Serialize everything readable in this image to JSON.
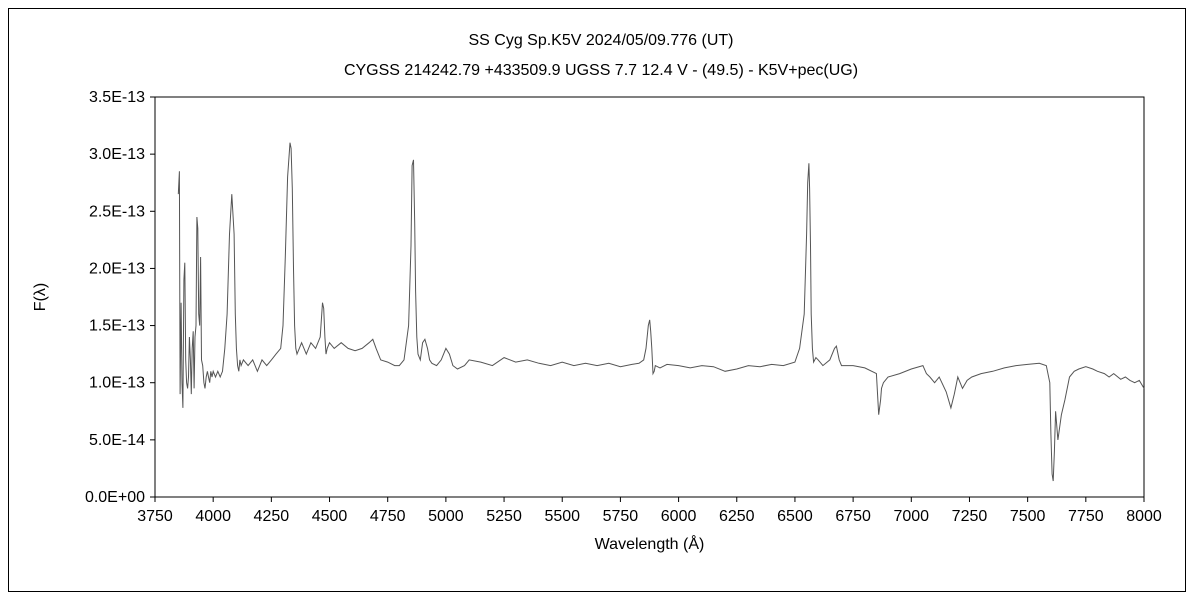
{
  "chart_data": {
    "type": "line",
    "title": "SS Cyg    Sp.K5V    2024/05/09.776 (UT)",
    "subtitle": "CYGSS 214242.79 +433509.9 UGSS 7.7 12.4 V - (49.5) - K5V+pec(UG)",
    "xlabel": "Wavelength (Å)",
    "ylabel": "F(λ)",
    "xlim": [
      3750,
      8000
    ],
    "ylim": [
      0,
      3.5e-13
    ],
    "x_ticks": [
      3750,
      4000,
      4250,
      4500,
      4750,
      5000,
      5250,
      5500,
      5750,
      6000,
      6250,
      6500,
      6750,
      7000,
      7250,
      7500,
      7750,
      8000
    ],
    "x_tick_labels": [
      "3750",
      "4000",
      "4250",
      "4500",
      "4750",
      "5000",
      "5250",
      "5500",
      "5750",
      "6000",
      "6250",
      "6500",
      "6750",
      "7000",
      "7250",
      "7500",
      "7750",
      "8000"
    ],
    "y_ticks": [
      0,
      5e-14,
      1e-13,
      1.5e-13,
      2e-13,
      2.5e-13,
      3e-13,
      3.5e-13
    ],
    "y_tick_labels": [
      "0.0E+00",
      "5.0E-14",
      "1.0E-13",
      "1.5E-13",
      "2.0E-13",
      "2.5E-13",
      "3.0E-13",
      "3.5E-13"
    ],
    "grid": false,
    "line_color": "#555555",
    "series": [
      {
        "x": [
          3850,
          3855,
          3858,
          3862,
          3866,
          3870,
          3874,
          3878,
          3882,
          3886,
          3890,
          3894,
          3898,
          3902,
          3906,
          3910,
          3914,
          3918,
          3922,
          3926,
          3930,
          3934,
          3938,
          3942,
          3946,
          3950,
          3955,
          3960,
          3965,
          3970,
          3975,
          3980,
          3985,
          3990,
          3995,
          4000,
          4010,
          4020,
          4030,
          4040,
          4050,
          4060,
          4070,
          4080,
          4090,
          4095,
          4100,
          4105,
          4110,
          4115,
          4120,
          4130,
          4150,
          4170,
          4190,
          4210,
          4230,
          4250,
          4270,
          4290,
          4300,
          4310,
          4320,
          4330,
          4335,
          4340,
          4345,
          4350,
          4355,
          4360,
          4370,
          4380,
          4400,
          4420,
          4440,
          4460,
          4470,
          4475,
          4480,
          4485,
          4490,
          4500,
          4520,
          4550,
          4580,
          4610,
          4640,
          4670,
          4686,
          4700,
          4720,
          4750,
          4780,
          4800,
          4820,
          4840,
          4850,
          4855,
          4861,
          4866,
          4870,
          4875,
          4880,
          4890,
          4900,
          4910,
          4921,
          4930,
          4940,
          4960,
          4980,
          5000,
          5015,
          5030,
          5050,
          5080,
          5100,
          5150,
          5200,
          5250,
          5300,
          5350,
          5400,
          5450,
          5500,
          5550,
          5600,
          5650,
          5700,
          5750,
          5800,
          5830,
          5850,
          5860,
          5870,
          5876,
          5880,
          5885,
          5890,
          5895,
          5900,
          5920,
          5950,
          6000,
          6050,
          6100,
          6150,
          6200,
          6250,
          6300,
          6350,
          6400,
          6450,
          6500,
          6520,
          6540,
          6550,
          6555,
          6560,
          6563,
          6567,
          6570,
          6575,
          6580,
          6590,
          6600,
          6620,
          6650,
          6670,
          6678,
          6690,
          6700,
          6750,
          6800,
          6850,
          6860,
          6868,
          6872,
          6880,
          6900,
          6950,
          7000,
          7050,
          7065,
          7080,
          7100,
          7120,
          7150,
          7170,
          7185,
          7200,
          7220,
          7240,
          7260,
          7300,
          7350,
          7400,
          7450,
          7500,
          7550,
          7580,
          7595,
          7600,
          7605,
          7610,
          7615,
          7620,
          7630,
          7645,
          7660,
          7680,
          7700,
          7720,
          7750,
          7780,
          7800,
          7830,
          7850,
          7870,
          7900,
          7920,
          7940,
          7960,
          7980,
          8000
        ],
        "y": [
          2.65e-13,
          2.85e-13,
          9e-14,
          1.7e-13,
          1e-13,
          7.8e-14,
          1.9e-13,
          2.05e-13,
          1.2e-13,
          1e-13,
          9.5e-14,
          1.05e-13,
          1.4e-13,
          1.2e-13,
          9e-14,
          1.3e-13,
          1.45e-13,
          9.5e-14,
          1.4e-13,
          1.5e-13,
          2.45e-13,
          2.35e-13,
          1.6e-13,
          1.5e-13,
          2.1e-13,
          1.2e-13,
          1.15e-13,
          1e-13,
          9.5e-14,
          1.05e-13,
          1.1e-13,
          1.05e-13,
          1e-13,
          1.1e-13,
          1.05e-13,
          1.1e-13,
          1.05e-13,
          1.1e-13,
          1.05e-13,
          1.1e-13,
          1.3e-13,
          1.6e-13,
          2.3e-13,
          2.65e-13,
          2.3e-13,
          1.6e-13,
          1.3e-13,
          1.15e-13,
          1.1e-13,
          1.2e-13,
          1.15e-13,
          1.2e-13,
          1.15e-13,
          1.2e-13,
          1.1e-13,
          1.2e-13,
          1.15e-13,
          1.2e-13,
          1.25e-13,
          1.3e-13,
          1.5e-13,
          2.1e-13,
          2.8e-13,
          3.1e-13,
          3.05e-13,
          2.7e-13,
          2e-13,
          1.5e-13,
          1.3e-13,
          1.25e-13,
          1.3e-13,
          1.35e-13,
          1.25e-13,
          1.35e-13,
          1.3e-13,
          1.4e-13,
          1.7e-13,
          1.65e-13,
          1.4e-13,
          1.25e-13,
          1.3e-13,
          1.35e-13,
          1.3e-13,
          1.35e-13,
          1.3e-13,
          1.28e-13,
          1.3e-13,
          1.35e-13,
          1.38e-13,
          1.3e-13,
          1.2e-13,
          1.18e-13,
          1.15e-13,
          1.15e-13,
          1.2e-13,
          1.5e-13,
          2.2e-13,
          2.9e-13,
          2.95e-13,
          2.4e-13,
          1.8e-13,
          1.4e-13,
          1.25e-13,
          1.2e-13,
          1.35e-13,
          1.38e-13,
          1.3e-13,
          1.2e-13,
          1.17e-13,
          1.15e-13,
          1.2e-13,
          1.3e-13,
          1.25e-13,
          1.15e-13,
          1.12e-13,
          1.15e-13,
          1.2e-13,
          1.18e-13,
          1.15e-13,
          1.22e-13,
          1.18e-13,
          1.2e-13,
          1.17e-13,
          1.15e-13,
          1.18e-13,
          1.15e-13,
          1.17e-13,
          1.15e-13,
          1.17e-13,
          1.14e-13,
          1.16e-13,
          1.17e-13,
          1.2e-13,
          1.3e-13,
          1.5e-13,
          1.55e-13,
          1.45e-13,
          1.3e-13,
          1.08e-13,
          1.1e-13,
          1.15e-13,
          1.13e-13,
          1.16e-13,
          1.15e-13,
          1.13e-13,
          1.15e-13,
          1.14e-13,
          1.1e-13,
          1.12e-13,
          1.15e-13,
          1.14e-13,
          1.16e-13,
          1.15e-13,
          1.18e-13,
          1.3e-13,
          1.6e-13,
          2.3e-13,
          2.75e-13,
          2.92e-13,
          2.7e-13,
          2.2e-13,
          1.6e-13,
          1.3e-13,
          1.18e-13,
          1.22e-13,
          1.2e-13,
          1.15e-13,
          1.2e-13,
          1.3e-13,
          1.32e-13,
          1.2e-13,
          1.15e-13,
          1.15e-13,
          1.13e-13,
          1.08e-13,
          7.2e-14,
          8.5e-14,
          9.5e-14,
          1e-13,
          1.05e-13,
          1.08e-13,
          1.12e-13,
          1.15e-13,
          1.08e-13,
          1.05e-13,
          1e-13,
          1.05e-13,
          9.2e-14,
          7.8e-14,
          9e-14,
          1.05e-13,
          9.5e-14,
          1.02e-13,
          1.05e-13,
          1.08e-13,
          1.1e-13,
          1.13e-13,
          1.15e-13,
          1.16e-13,
          1.17e-13,
          1.15e-13,
          1e-13,
          5.5e-14,
          2e-14,
          1.4e-14,
          4e-14,
          7.5e-14,
          5e-14,
          7.2e-14,
          8.5e-14,
          1.05e-13,
          1.1e-13,
          1.12e-13,
          1.14e-13,
          1.12e-13,
          1.1e-13,
          1.08e-13,
          1.05e-13,
          1.08e-13,
          1.03e-13,
          1.05e-13,
          1.02e-13,
          1e-13,
          1.02e-13,
          9.5e-14
        ]
      }
    ]
  }
}
